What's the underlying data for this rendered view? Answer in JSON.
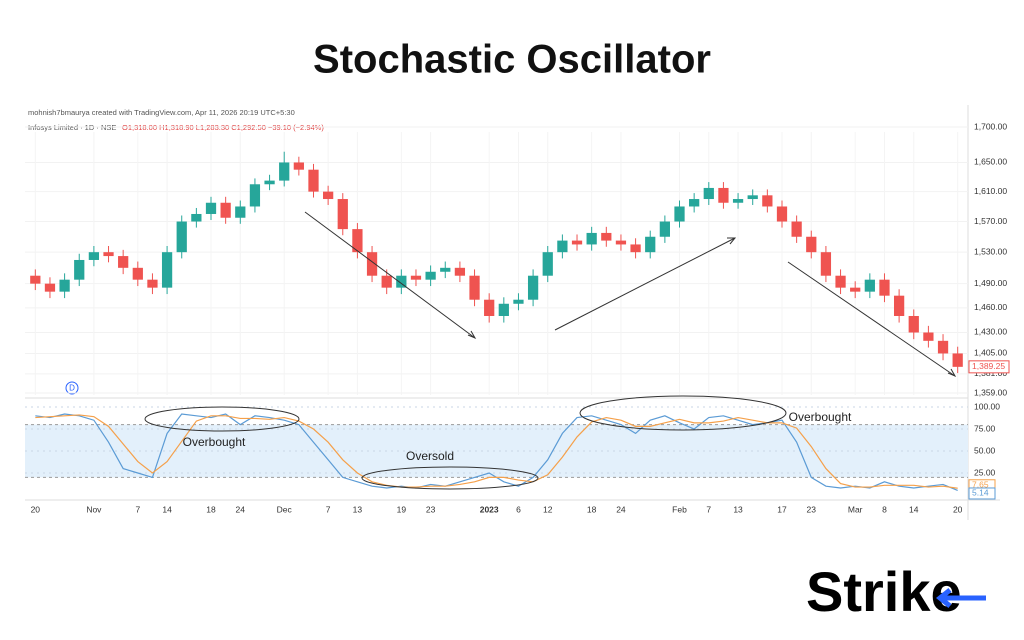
{
  "chart_data": {
    "type": "candlestick",
    "title": "Stochastic Oscillator",
    "credit": "mohnish7bmaurya created with TradingView.com, Apr 11, 2026 20:19 UTC+5:30",
    "symbol": "Infosys Limited · 1D · NSE",
    "ohlc_text": "O1,318.00 H1,318.90 L1,283.30 C1,292.50 −39.10 (−2.94%)",
    "indicator_badge": "D",
    "brand": "Strike",
    "log_scale": true,
    "grid": true,
    "up_color": "#26a69a",
    "down_color": "#ef5350",
    "open": [
      1500,
      1490,
      1480,
      1495,
      1520,
      1530,
      1525,
      1510,
      1495,
      1485,
      1530,
      1570,
      1580,
      1595,
      1575,
      1590,
      1620,
      1625,
      1650,
      1640,
      1610,
      1600,
      1560,
      1530,
      1500,
      1485,
      1500,
      1495,
      1505,
      1510,
      1500,
      1470,
      1450,
      1465,
      1470,
      1500,
      1530,
      1545,
      1540,
      1555,
      1545,
      1540,
      1530,
      1550,
      1570,
      1590,
      1600,
      1615,
      1595,
      1600,
      1605,
      1590,
      1570,
      1550,
      1530,
      1500,
      1485,
      1480,
      1495,
      1475,
      1450,
      1430,
      1420,
      1405
    ],
    "high": [
      1508,
      1498,
      1503,
      1528,
      1538,
      1538,
      1533,
      1518,
      1503,
      1538,
      1578,
      1588,
      1603,
      1603,
      1598,
      1628,
      1633,
      1665,
      1658,
      1648,
      1618,
      1608,
      1568,
      1538,
      1508,
      1508,
      1508,
      1513,
      1518,
      1518,
      1508,
      1478,
      1473,
      1478,
      1508,
      1538,
      1553,
      1553,
      1563,
      1563,
      1553,
      1548,
      1558,
      1578,
      1598,
      1608,
      1623,
      1623,
      1608,
      1613,
      1613,
      1598,
      1578,
      1558,
      1538,
      1508,
      1493,
      1503,
      1503,
      1483,
      1458,
      1438,
      1428,
      1413
    ],
    "low": [
      1482,
      1472,
      1472,
      1487,
      1512,
      1517,
      1502,
      1487,
      1477,
      1477,
      1522,
      1562,
      1572,
      1567,
      1567,
      1582,
      1612,
      1617,
      1632,
      1602,
      1592,
      1552,
      1522,
      1492,
      1477,
      1477,
      1487,
      1487,
      1497,
      1492,
      1462,
      1442,
      1442,
      1457,
      1462,
      1492,
      1522,
      1532,
      1532,
      1537,
      1532,
      1522,
      1522,
      1542,
      1562,
      1582,
      1592,
      1587,
      1587,
      1592,
      1582,
      1562,
      1542,
      1522,
      1492,
      1477,
      1472,
      1472,
      1467,
      1442,
      1422,
      1412,
      1397,
      1382
    ],
    "close": [
      1490,
      1480,
      1495,
      1520,
      1530,
      1525,
      1510,
      1495,
      1485,
      1530,
      1570,
      1580,
      1595,
      1575,
      1590,
      1620,
      1625,
      1650,
      1640,
      1610,
      1600,
      1560,
      1530,
      1500,
      1485,
      1500,
      1495,
      1505,
      1510,
      1500,
      1470,
      1450,
      1465,
      1470,
      1500,
      1530,
      1545,
      1540,
      1555,
      1545,
      1540,
      1530,
      1550,
      1570,
      1590,
      1600,
      1615,
      1595,
      1600,
      1605,
      1590,
      1570,
      1550,
      1530,
      1500,
      1485,
      1480,
      1495,
      1475,
      1450,
      1430,
      1420,
      1405,
      1389.25
    ],
    "last_close_label": "1,389.25",
    "ylim": [
      1359,
      1700
    ],
    "yticks": [
      {
        "value": 1700,
        "label": "1,700.00"
      },
      {
        "value": 1650,
        "label": "1,650.00"
      },
      {
        "value": 1610,
        "label": "1,610.00"
      },
      {
        "value": 1570,
        "label": "1,570.00"
      },
      {
        "value": 1530,
        "label": "1,530.00"
      },
      {
        "value": 1490,
        "label": "1,490.00"
      },
      {
        "value": 1460,
        "label": "1,460.00"
      },
      {
        "value": 1430,
        "label": "1,430.00"
      },
      {
        "value": 1405,
        "label": "1,405.00"
      },
      {
        "value": 1381,
        "label": "1,381.00"
      },
      {
        "value": 1359,
        "label": "1,359.00"
      }
    ],
    "xticks": [
      {
        "value": 0,
        "label": "20"
      },
      {
        "value": 4,
        "label": "Nov"
      },
      {
        "value": 7,
        "label": "7"
      },
      {
        "value": 9,
        "label": "14"
      },
      {
        "value": 12,
        "label": "18"
      },
      {
        "value": 14,
        "label": "24"
      },
      {
        "value": 17,
        "label": "Dec"
      },
      {
        "value": 20,
        "label": "7"
      },
      {
        "value": 22,
        "label": "13"
      },
      {
        "value": 25,
        "label": "19"
      },
      {
        "value": 27,
        "label": "23"
      },
      {
        "value": 31,
        "label": "2023"
      },
      {
        "value": 33,
        "label": "6"
      },
      {
        "value": 35,
        "label": "12"
      },
      {
        "value": 38,
        "label": "18"
      },
      {
        "value": 40,
        "label": "24"
      },
      {
        "value": 44,
        "label": "Feb"
      },
      {
        "value": 46,
        "label": "7"
      },
      {
        "value": 48,
        "label": "13"
      },
      {
        "value": 51,
        "label": "17"
      },
      {
        "value": 53,
        "label": "23"
      },
      {
        "value": 56,
        "label": "Mar"
      },
      {
        "value": 58,
        "label": "8"
      },
      {
        "value": 60,
        "label": "14"
      },
      {
        "value": 63,
        "label": "20"
      }
    ],
    "oscillator": {
      "ylim": [
        0,
        100
      ],
      "yticks": [
        {
          "value": 100,
          "label": "100.00"
        },
        {
          "value": 75,
          "label": "75.00"
        },
        {
          "value": 50,
          "label": "50.00"
        },
        {
          "value": 25,
          "label": "25.00"
        }
      ],
      "band": [
        20,
        80
      ],
      "series": [
        {
          "color": "#5b9bd5",
          "values": [
            90,
            88,
            92,
            90,
            85,
            60,
            30,
            25,
            20,
            70,
            92,
            90,
            88,
            92,
            80,
            90,
            88,
            85,
            80,
            60,
            40,
            20,
            15,
            10,
            8,
            10,
            8,
            12,
            10,
            15,
            20,
            25,
            15,
            10,
            20,
            40,
            70,
            88,
            90,
            85,
            80,
            70,
            85,
            90,
            82,
            75,
            88,
            90,
            85,
            80,
            82,
            85,
            60,
            20,
            10,
            8,
            10,
            8,
            15,
            10,
            8,
            10,
            12,
            5.14
          ]
        },
        {
          "color": "#f5a04a",
          "values": [
            88,
            89,
            90,
            91,
            89,
            78,
            58,
            38,
            25,
            38,
            61,
            84,
            90,
            90,
            87,
            87,
            86,
            88,
            84,
            75,
            60,
            40,
            25,
            15,
            11,
            9,
            9,
            10,
            10,
            12,
            15,
            20,
            20,
            17,
            15,
            23,
            43,
            66,
            83,
            88,
            85,
            78,
            78,
            82,
            86,
            82,
            82,
            84,
            88,
            85,
            82,
            82,
            76,
            55,
            30,
            13,
            9,
            9,
            11,
            11,
            11,
            9,
            10,
            7.65
          ]
        }
      ]
    },
    "annotations": [
      "Overbought",
      "Oversold",
      "Overbought"
    ]
  }
}
